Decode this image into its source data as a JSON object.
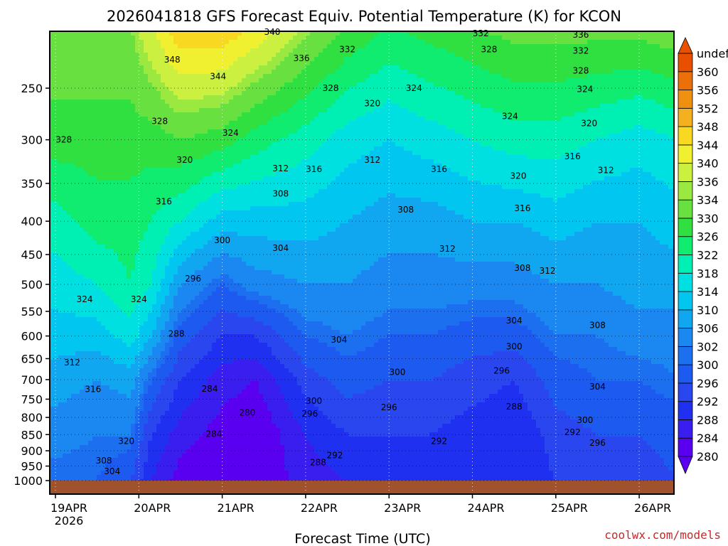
{
  "title": "2026041818 GFS Forecast Equiv. Potential Temperature (K) for KCON",
  "credit": "coolwx.com/models",
  "chart_data": {
    "type": "heatmap",
    "title": "2026041818 GFS Forecast Equiv. Potential Temperature (K) for KCON",
    "xlabel": "Forecast Time (UTC)",
    "ylabel": "",
    "x_ticks": [
      "19APR",
      "20APR",
      "21APR",
      "22APR",
      "23APR",
      "24APR",
      "25APR",
      "26APR"
    ],
    "x_year_label": "2026",
    "xlim": [
      0,
      7.5
    ],
    "y_ticks": [
      250,
      300,
      350,
      400,
      450,
      500,
      550,
      600,
      650,
      700,
      750,
      800,
      850,
      900,
      950,
      1000
    ],
    "y_scale": "log",
    "ylim": [
      1020,
      200
    ],
    "grid": true,
    "colorbar": {
      "levels": [
        280,
        284,
        288,
        292,
        296,
        300,
        302,
        306,
        310,
        314,
        318,
        322,
        326,
        330,
        334,
        336,
        340,
        344,
        348,
        352,
        356,
        360
      ],
      "colors": [
        "#5a00f0",
        "#3a1ef0",
        "#2030f0",
        "#2a46ee",
        "#1d5af0",
        "#1c70f0",
        "#1a88f0",
        "#10a6f0",
        "#00c6f0",
        "#00e0e0",
        "#00f0b4",
        "#10ec70",
        "#30e040",
        "#68e040",
        "#9ae840",
        "#ccf040",
        "#f0f030",
        "#f8d820",
        "#f4b020",
        "#f09010",
        "#ec7008",
        "#e85000"
      ],
      "extend": "both"
    },
    "columns": [
      {
        "t": 0.0,
        "lo": [
          300,
          304,
          308,
          312,
          316,
          320,
          328,
          334
        ]
      },
      {
        "t": 0.5,
        "lo": [
          300,
          302,
          306,
          312,
          318,
          324,
          328,
          334
        ]
      },
      {
        "t": 0.9,
        "lo": [
          296,
          302,
          308,
          316,
          322,
          324,
          328,
          334
        ]
      },
      {
        "t": 1.15,
        "lo": [
          288,
          292,
          300,
          310,
          318,
          322,
          328,
          340
        ]
      },
      {
        "t": 1.5,
        "lo": [
          282,
          286,
          292,
          298,
          306,
          318,
          330,
          348
        ]
      },
      {
        "t": 2.0,
        "lo": [
          280,
          282,
          286,
          292,
          300,
          312,
          328,
          348
        ]
      },
      {
        "t": 2.4,
        "lo": [
          280,
          280,
          284,
          292,
          304,
          312,
          324,
          344
        ]
      },
      {
        "t": 3.0,
        "lo": [
          286,
          288,
          294,
          300,
          306,
          312,
          320,
          336
        ]
      },
      {
        "t": 3.5,
        "lo": [
          288,
          292,
          298,
          302,
          306,
          310,
          316,
          330
        ]
      },
      {
        "t": 4.0,
        "lo": [
          290,
          292,
          296,
          300,
          304,
          308,
          314,
          326
        ]
      },
      {
        "t": 4.5,
        "lo": [
          290,
          292,
          296,
          300,
          304,
          308,
          316,
          328
        ]
      },
      {
        "t": 5.0,
        "lo": [
          290,
          290,
          294,
          298,
          304,
          310,
          318,
          330
        ]
      },
      {
        "t": 5.5,
        "lo": [
          288,
          288,
          292,
          298,
          304,
          310,
          320,
          332
        ]
      },
      {
        "t": 6.0,
        "lo": [
          292,
          294,
          298,
          302,
          306,
          312,
          320,
          332
        ]
      },
      {
        "t": 6.5,
        "lo": [
          294,
          296,
          300,
          302,
          306,
          310,
          318,
          332
        ]
      },
      {
        "t": 7.0,
        "lo": [
          294,
          296,
          300,
          304,
          308,
          310,
          316,
          332
        ]
      },
      {
        "t": 7.5,
        "lo": [
          296,
          298,
          302,
          304,
          308,
          312,
          318,
          334
        ]
      }
    ],
    "column_levels_hpa": [
      1000,
      850,
      700,
      600,
      500,
      400,
      300,
      200
    ],
    "annotations": [
      {
        "text": "340",
        "x": 2.6,
        "y": 205
      },
      {
        "text": "332",
        "x": 5.1,
        "y": 206
      },
      {
        "text": "336",
        "x": 6.3,
        "y": 207
      },
      {
        "text": "328",
        "x": 5.2,
        "y": 218
      },
      {
        "text": "332",
        "x": 3.5,
        "y": 218
      },
      {
        "text": "332",
        "x": 6.3,
        "y": 219
      },
      {
        "text": "348",
        "x": 1.4,
        "y": 226
      },
      {
        "text": "336",
        "x": 2.95,
        "y": 225
      },
      {
        "text": "344",
        "x": 1.95,
        "y": 240
      },
      {
        "text": "328",
        "x": 6.3,
        "y": 235
      },
      {
        "text": "328",
        "x": 3.3,
        "y": 250
      },
      {
        "text": "324",
        "x": 4.3,
        "y": 250
      },
      {
        "text": "324",
        "x": 6.35,
        "y": 251
      },
      {
        "text": "320",
        "x": 3.8,
        "y": 264
      },
      {
        "text": "324",
        "x": 5.45,
        "y": 276
      },
      {
        "text": "328",
        "x": 1.25,
        "y": 281
      },
      {
        "text": "320",
        "x": 6.4,
        "y": 283
      },
      {
        "text": "324",
        "x": 2.1,
        "y": 293
      },
      {
        "text": "328",
        "x": 0.1,
        "y": 300
      },
      {
        "text": "316",
        "x": 6.2,
        "y": 318
      },
      {
        "text": "320",
        "x": 1.55,
        "y": 322
      },
      {
        "text": "312",
        "x": 3.8,
        "y": 322
      },
      {
        "text": "312",
        "x": 2.7,
        "y": 332
      },
      {
        "text": "316",
        "x": 3.1,
        "y": 333
      },
      {
        "text": "316",
        "x": 4.6,
        "y": 333
      },
      {
        "text": "312",
        "x": 6.6,
        "y": 334
      },
      {
        "text": "320",
        "x": 5.55,
        "y": 341
      },
      {
        "text": "308",
        "x": 2.7,
        "y": 363
      },
      {
        "text": "316",
        "x": 1.3,
        "y": 373
      },
      {
        "text": "308",
        "x": 4.2,
        "y": 384
      },
      {
        "text": "316",
        "x": 5.6,
        "y": 382
      },
      {
        "text": "300",
        "x": 2.0,
        "y": 428
      },
      {
        "text": "304",
        "x": 2.7,
        "y": 440
      },
      {
        "text": "312",
        "x": 4.7,
        "y": 441
      },
      {
        "text": "308",
        "x": 5.6,
        "y": 472
      },
      {
        "text": "312",
        "x": 5.9,
        "y": 477
      },
      {
        "text": "296",
        "x": 1.65,
        "y": 490
      },
      {
        "text": "324",
        "x": 0.35,
        "y": 527
      },
      {
        "text": "324",
        "x": 1.0,
        "y": 527
      },
      {
        "text": "304",
        "x": 5.5,
        "y": 568
      },
      {
        "text": "308",
        "x": 6.5,
        "y": 578
      },
      {
        "text": "288",
        "x": 1.45,
        "y": 595
      },
      {
        "text": "304",
        "x": 3.4,
        "y": 608
      },
      {
        "text": "300",
        "x": 5.5,
        "y": 623
      },
      {
        "text": "312",
        "x": 0.2,
        "y": 659
      },
      {
        "text": "296",
        "x": 5.35,
        "y": 678
      },
      {
        "text": "300",
        "x": 4.1,
        "y": 682
      },
      {
        "text": "304",
        "x": 6.5,
        "y": 718
      },
      {
        "text": "316",
        "x": 0.45,
        "y": 724
      },
      {
        "text": "284",
        "x": 1.85,
        "y": 723
      },
      {
        "text": "288",
        "x": 5.5,
        "y": 770
      },
      {
        "text": "300",
        "x": 3.1,
        "y": 755
      },
      {
        "text": "296",
        "x": 4.0,
        "y": 772
      },
      {
        "text": "280",
        "x": 2.3,
        "y": 787
      },
      {
        "text": "296",
        "x": 3.05,
        "y": 790
      },
      {
        "text": "300",
        "x": 6.35,
        "y": 808
      },
      {
        "text": "292",
        "x": 6.2,
        "y": 843
      },
      {
        "text": "284",
        "x": 1.9,
        "y": 848
      },
      {
        "text": "320",
        "x": 0.85,
        "y": 870
      },
      {
        "text": "292",
        "x": 4.6,
        "y": 870
      },
      {
        "text": "296",
        "x": 6.5,
        "y": 875
      },
      {
        "text": "292",
        "x": 3.35,
        "y": 915
      },
      {
        "text": "308",
        "x": 0.58,
        "y": 932
      },
      {
        "text": "288",
        "x": 3.15,
        "y": 938
      },
      {
        "text": "304",
        "x": 0.68,
        "y": 968
      }
    ]
  }
}
